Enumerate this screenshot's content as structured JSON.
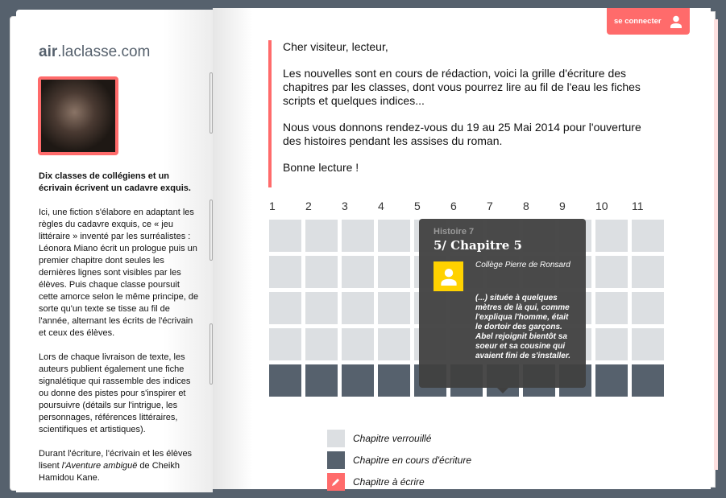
{
  "header": {
    "logo_bold": "air",
    "logo_rest": ".laclasse.com",
    "login_label": "se connecter"
  },
  "sidebar": {
    "lead": "Dix classes de collégiens et un écrivain écrivent un cadavre exquis.",
    "p1": "Ici, une fiction s'élabore en adaptant les règles du cadavre exquis, ce « jeu littéraire » inventé par les surréalistes : Léonora Miano écrit un prologue puis un premier chapitre dont seules les dernières lignes sont visibles par les élèves. Puis chaque classe poursuit cette amorce selon le même principe, de sorte qu'un texte se tisse au fil de l'année, alternant les écrits de l'écrivain et ceux des élèves.",
    "p2": "Lors de chaque livraison de texte, les auteurs publient également une fiche signalétique qui rassemble des indices ou donne des pistes pour s'inspirer et poursuivre (détails sur l'intrigue, les personnages, références littéraires, scientifiques et artistiques).",
    "p3_a": "Durant l'écriture, l'écrivain et les élèves lisent ",
    "p3_em": "l'Aventure ambiguë",
    "p3_b": " de Cheikh Hamidou Kane."
  },
  "message": {
    "greeting": "Cher visiteur, lecteur,",
    "p1": "Les nouvelles sont en cours de rédaction, voici la grille d'écriture des chapitres par les classes, dont vous pourrez lire au fil de l'eau les fiches scripts et quelques indices...",
    "p2": "Nous vous donnons rendez-vous du 19 au 25 Mai 2014 pour l'ouverture des histoires pendant les assises du roman.",
    "closing": "Bonne lecture !"
  },
  "grid": {
    "columns": [
      "1",
      "2",
      "3",
      "4",
      "5",
      "6",
      "7",
      "8",
      "9",
      "10",
      "11"
    ],
    "rows": [
      [
        "locked",
        "locked",
        "locked",
        "locked",
        "locked",
        "locked",
        "locked",
        "locked",
        "locked",
        "locked",
        "locked"
      ],
      [
        "locked",
        "locked",
        "locked",
        "locked",
        "locked",
        "locked",
        "locked",
        "locked",
        "locked",
        "locked",
        "locked"
      ],
      [
        "locked",
        "locked",
        "locked",
        "locked",
        "locked",
        "locked",
        "locked",
        "locked",
        "locked",
        "locked",
        "locked"
      ],
      [
        "locked",
        "locked",
        "locked",
        "locked",
        "locked",
        "locked",
        "locked",
        "locked",
        "locked",
        "locked",
        "locked"
      ],
      [
        "writing",
        "writing",
        "writing",
        "writing",
        "writing",
        "writing",
        "writing",
        "writing",
        "writing",
        "writing",
        "writing"
      ]
    ]
  },
  "tooltip": {
    "story": "Histoire 7",
    "chapter": "5/ Chapitre 5",
    "school": "Collège Pierre de Ronsard",
    "excerpt": "(...) située à quelques mètres de là qui, comme l'expliqua l'homme, était le dortoir des garçons. Abel rejoignit bientôt sa soeur et sa cousine qui avaient fini de s'installer."
  },
  "legend": [
    {
      "label": "Chapitre verrouillé",
      "color": "#dcdfe2"
    },
    {
      "label": "Chapitre en cours d'écriture",
      "color": "#56616d"
    },
    {
      "label": "Chapitre à écrire",
      "color": "#ff6b6b",
      "icon": "pencil-icon"
    }
  ],
  "colors": {
    "accent": "#ff6b6b",
    "background": "#56616d",
    "avatar": "#ffd200"
  }
}
